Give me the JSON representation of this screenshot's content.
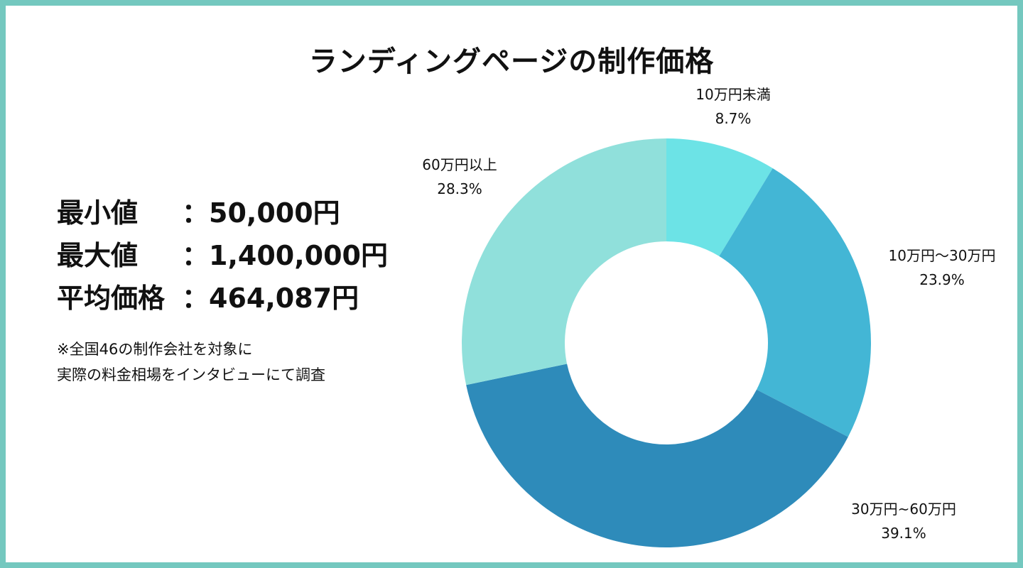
{
  "chart_data": {
    "type": "pie",
    "title": "ランディングページの制作価格",
    "donut": true,
    "slices": [
      {
        "label": "10万円未満",
        "value": 8.7,
        "value_label": "8.7%",
        "color": "#6ce3e6"
      },
      {
        "label": "10万円〜30万円",
        "value": 23.9,
        "value_label": "23.9%",
        "color": "#43b6d5"
      },
      {
        "label": "30万円~60万円",
        "value": 39.1,
        "value_label": "39.1%",
        "color": "#2e8bba"
      },
      {
        "label": "60万円以上",
        "value": 28.3,
        "value_label": "28.3%",
        "color": "#90e0db"
      }
    ]
  },
  "stats": [
    {
      "label": "最小値",
      "value": "：50,000円"
    },
    {
      "label": "最大値",
      "value": "：1,400,000円"
    },
    {
      "label": "平均価格",
      "value": "：464,087円"
    }
  ],
  "note": [
    "※全国46の制作会社を対象に",
    "実際の料金相場をインタビューにて調査"
  ],
  "colors": {
    "frame": "#74c8bf",
    "background": "#ffffff",
    "text": "#111111"
  }
}
